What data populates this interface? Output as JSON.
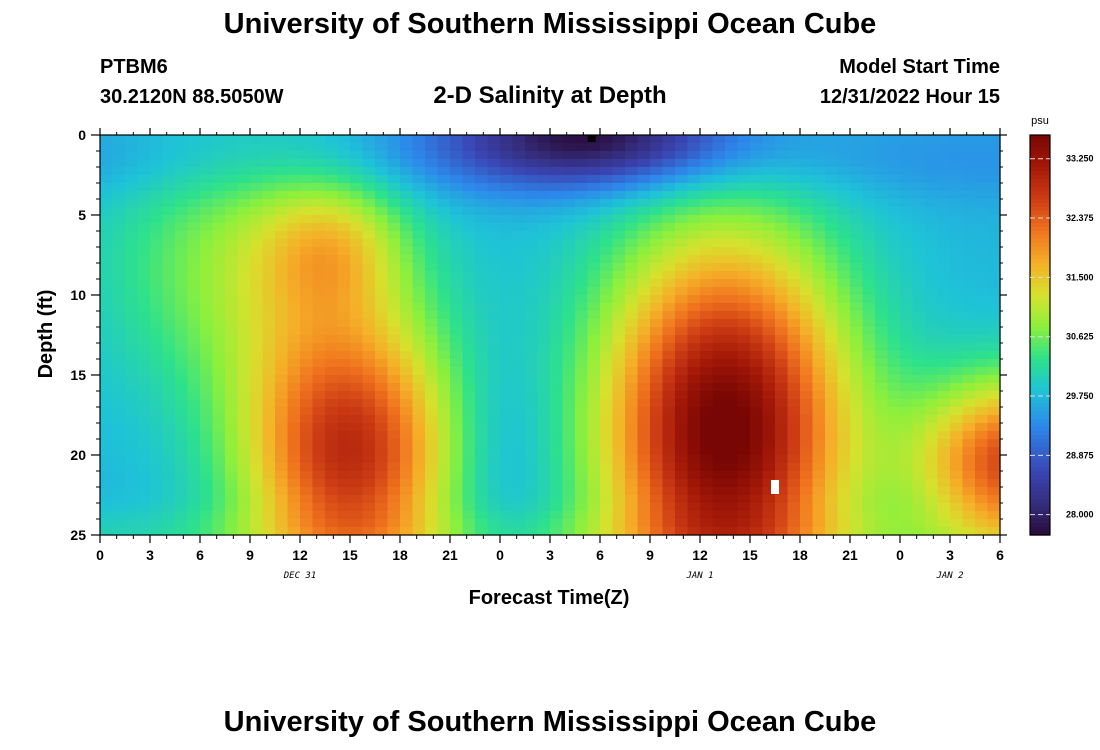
{
  "header": {
    "title": "University of Southern Mississippi Ocean Cube",
    "station_id": "PTBM6",
    "coords": "30.2120N  88.5050W",
    "subtitle": "2-D Salinity at Depth",
    "start_label": "Model Start Time",
    "start_value": "12/31/2022 Hour 15"
  },
  "footer": {
    "title": "University of Southern Mississippi Ocean Cube"
  },
  "colors": {
    "background": "#ffffff",
    "axis": "#000000",
    "marker": "#ffffff"
  },
  "chart_data": {
    "type": "heatmap",
    "title": "2-D Salinity at Depth",
    "xlabel": "Forecast Time(Z)",
    "ylabel": "Depth (ft)",
    "x_range_hours": [
      0,
      54
    ],
    "xlim": [
      0,
      54
    ],
    "ylim": [
      25,
      0
    ],
    "x_ticks": [
      0,
      3,
      6,
      9,
      12,
      15,
      18,
      21,
      24,
      27,
      30,
      33,
      36,
      39,
      42,
      45,
      48,
      51,
      54
    ],
    "x_tick_labels": [
      "0",
      "3",
      "6",
      "9",
      "12",
      "15",
      "18",
      "21",
      "0",
      "3",
      "6",
      "9",
      "12",
      "15",
      "18",
      "21",
      "0",
      "3",
      "6"
    ],
    "y_ticks": [
      0,
      5,
      10,
      15,
      20,
      25
    ],
    "y_tick_labels": [
      "0",
      "5",
      "10",
      "15",
      "20",
      "25"
    ],
    "date_labels": [
      {
        "hour": 12,
        "text": "DEC 31"
      },
      {
        "hour": 36,
        "text": "JAN 1"
      },
      {
        "hour": 51,
        "text": "JAN 2"
      }
    ],
    "colorbar": {
      "unit": "psu",
      "min": 27.7,
      "max": 33.6,
      "ticks": [
        28.0,
        28.875,
        29.75,
        30.625,
        31.5,
        32.375,
        33.25
      ],
      "tick_labels": [
        "28.000",
        "28.875",
        "29.750",
        "30.625",
        "31.500",
        "32.375",
        "33.250"
      ]
    },
    "features": [
      {
        "kind": "surface_fresh_layer",
        "salinity_psu": 29.6,
        "depth_ft": [
          0,
          4
        ]
      },
      {
        "kind": "saline_core",
        "time_hours": 15,
        "depth_ft": 20,
        "salinity_psu": 32.8
      },
      {
        "kind": "saline_core",
        "time_hours": 38,
        "depth_ft": 20,
        "salinity_psu": 33.5
      },
      {
        "kind": "saline_core",
        "time_hours": 54,
        "depth_ft": 20,
        "salinity_psu": 32.5
      },
      {
        "kind": "fresh_minimum",
        "time_hours": 29.5,
        "depth_ft": 0,
        "salinity_psu": 27.8
      },
      {
        "kind": "station_marker",
        "time_hours": 40.5,
        "depth_ft": 22
      }
    ]
  }
}
